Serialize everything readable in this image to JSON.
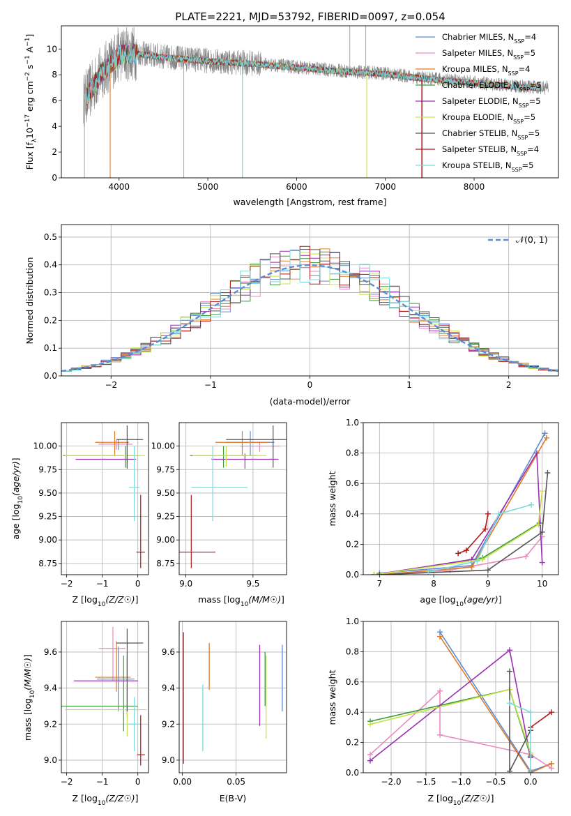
{
  "figure": {
    "title": "PLATE=2221, MJD=53792, FIBERID=0097, z=0.054"
  },
  "series_colors": {
    "Chabrier MILES": "#5b8bd6",
    "Salpeter MILES": "#e98ac0",
    "Kroupa MILES": "#e07b28",
    "Chabrier ELODIE": "#3a9a3a",
    "Salpeter ELODIE": "#9a2fb0",
    "Kroupa ELODIE": "#c8e04a",
    "Chabrier STELIB": "#555555",
    "Salpeter STELIB": "#b01818",
    "Kroupa STELIB": "#7ad9dc",
    "data": "#808080"
  },
  "chart_data": [
    {
      "id": "spectrum",
      "type": "line",
      "xlabel": "wavelength [Angstrom, rest frame]",
      "ylabel": "Flux [f_λ 10^-17 erg cm^-2 s^-1 A^-1]",
      "xlim": [
        3350,
        8950
      ],
      "ylim": [
        0,
        11.8
      ],
      "xticks": [
        4000,
        5000,
        6000,
        7000,
        8000
      ],
      "yticks": [
        0,
        2,
        4,
        6,
        8,
        10
      ],
      "legend_position": "top-right",
      "legend": [
        {
          "series": "Chabrier MILES",
          "label": "Chabrier MILES, N",
          "sub": "SSP",
          "tail": "=4"
        },
        {
          "series": "Salpeter MILES",
          "label": "Salpeter MILES, N",
          "sub": "SSP",
          "tail": "=5"
        },
        {
          "series": "Kroupa MILES",
          "label": "Kroupa MILES, N",
          "sub": "SSP",
          "tail": "=4"
        },
        {
          "series": "Chabrier ELODIE",
          "label": "Chabrier ELODIE, N",
          "sub": "SSP",
          "tail": "=5"
        },
        {
          "series": "Salpeter ELODIE",
          "label": "Salpeter ELODIE, N",
          "sub": "SSP",
          "tail": "=5"
        },
        {
          "series": "Kroupa ELODIE",
          "label": "Kroupa ELODIE, N",
          "sub": "SSP",
          "tail": "=5"
        },
        {
          "series": "Chabrier STELIB",
          "label": "Chabrier STELIB, N",
          "sub": "SSP",
          "tail": "=5"
        },
        {
          "series": "Salpeter STELIB",
          "label": "Salpeter STELIB, N",
          "sub": "SSP",
          "tail": "=4"
        },
        {
          "series": "Kroupa STELIB",
          "label": "Kroupa STELIB, N",
          "sub": "SSP",
          "tail": "=5"
        }
      ],
      "continuum": {
        "x": [
          3600,
          3700,
          3800,
          3900,
          4000,
          4200,
          4500,
          5000,
          5500,
          6000,
          6500,
          7000,
          7500,
          8000,
          8500,
          8800
        ],
        "y": [
          6.0,
          7.0,
          8.2,
          8.8,
          9.6,
          9.7,
          9.4,
          9.1,
          8.9,
          8.6,
          8.3,
          8.1,
          7.7,
          7.4,
          7.1,
          7.0
        ]
      },
      "data_x_range": [
        3600,
        8840
      ],
      "model_x_range": [
        3630,
        8760
      ]
    },
    {
      "id": "residuals",
      "type": "line",
      "xlabel": "(data-model)/error",
      "ylabel": "Normed distribution",
      "xlim": [
        -2.5,
        2.5
      ],
      "ylim": [
        0,
        0.545
      ],
      "xticks": [
        -2,
        -1,
        0,
        1,
        2
      ],
      "yticks": [
        0.0,
        0.1,
        0.2,
        0.3,
        0.4,
        0.5
      ],
      "reference": {
        "label": "𝒩(0, 1)",
        "mu": 0,
        "sigma": 1,
        "color": "#5b8bd6",
        "style": "dashed"
      },
      "legend_position": "top-right",
      "bin_width": 0.1
    },
    {
      "id": "age_vs_Z",
      "type": "scatter",
      "xlabel": "Z [log10(Z/Z☉)]",
      "ylabel": "age [log10(age/yr)]",
      "xlim": [
        -2.15,
        0.3
      ],
      "ylim": [
        8.63,
        10.25
      ],
      "xticks": [
        -2,
        -1,
        0
      ],
      "yticks": [
        8.75,
        9.0,
        9.25,
        9.5,
        9.75,
        10.0
      ],
      "points": [
        {
          "series": "Chabrier MILES",
          "x": -0.55,
          "y": 10.02,
          "xerr": [
            0.55,
            0.3
          ],
          "yerr": [
            0.06,
            0.05
          ]
        },
        {
          "series": "Salpeter MILES",
          "x": -0.6,
          "y": 10.02,
          "xerr": [
            0.5,
            0.45
          ],
          "yerr": [
            0.06,
            0.05
          ]
        },
        {
          "series": "Kroupa MILES",
          "x": -0.65,
          "y": 10.04,
          "xerr": [
            0.55,
            0.4
          ],
          "yerr": [
            0.14,
            0.12
          ]
        },
        {
          "series": "Chabrier ELODIE",
          "x": -0.35,
          "y": 9.9,
          "xerr": [
            1.75,
            0.4
          ],
          "yerr": [
            0.13,
            0.1
          ]
        },
        {
          "series": "Salpeter ELODIE",
          "x": -0.3,
          "y": 9.86,
          "xerr": [
            1.45,
            0.25
          ],
          "yerr": [
            0.1,
            0.06
          ]
        },
        {
          "series": "Kroupa ELODIE",
          "x": -0.3,
          "y": 9.9,
          "xerr": [
            1.75,
            0.5
          ],
          "yerr": [
            0.12,
            0.1
          ]
        },
        {
          "series": "Chabrier STELIB",
          "x": -0.3,
          "y": 10.07,
          "xerr": [
            0.3,
            0.45
          ],
          "yerr": [
            0.3,
            0.15
          ]
        },
        {
          "series": "Salpeter STELIB",
          "x": 0.08,
          "y": 8.87,
          "xerr": [
            0.12,
            0.12
          ],
          "yerr": [
            0.17,
            0.61
          ]
        },
        {
          "series": "Kroupa STELIB",
          "x": -0.1,
          "y": 9.56,
          "xerr": [
            0.15,
            0.15
          ],
          "yerr": [
            0.36,
            0.44
          ]
        }
      ]
    },
    {
      "id": "age_vs_mass",
      "type": "scatter",
      "xlabel": "mass [log10(M/M☉)]",
      "ylabel": "",
      "xlim": [
        8.95,
        9.75
      ],
      "ylim": [
        8.63,
        10.25
      ],
      "xticks": [
        9.0,
        9.5
      ],
      "yticks": [
        8.75,
        9.0,
        9.25,
        9.5,
        9.75,
        10.0
      ],
      "points": [
        {
          "series": "Chabrier MILES",
          "x": 9.48,
          "y": 10.04,
          "xerr": [
            0.18,
            0.18
          ],
          "yerr": [
            0.14,
            0.12
          ]
        },
        {
          "series": "Salpeter MILES",
          "x": 9.55,
          "y": 10.0,
          "xerr": [
            0.15,
            0.15
          ],
          "yerr": [
            0.06,
            0.05
          ]
        },
        {
          "series": "Kroupa MILES",
          "x": 9.42,
          "y": 10.04,
          "xerr": [
            0.2,
            0.2
          ],
          "yerr": [
            0.14,
            0.12
          ]
        },
        {
          "series": "Chabrier ELODIE",
          "x": 9.28,
          "y": 9.9,
          "xerr": [
            0.25,
            0.25
          ],
          "yerr": [
            0.13,
            0.1
          ]
        },
        {
          "series": "Salpeter ELODIE",
          "x": 9.44,
          "y": 9.86,
          "xerr": [
            0.25,
            0.25
          ],
          "yerr": [
            0.1,
            0.06
          ]
        },
        {
          "series": "Kroupa ELODIE",
          "x": 9.3,
          "y": 9.9,
          "xerr": [
            0.25,
            0.3
          ],
          "yerr": [
            0.12,
            0.1
          ]
        },
        {
          "series": "Chabrier STELIB",
          "x": 9.65,
          "y": 10.07,
          "xerr": [
            0.35,
            0.1
          ],
          "yerr": [
            0.3,
            0.15
          ]
        },
        {
          "series": "Salpeter STELIB",
          "x": 9.04,
          "y": 8.87,
          "xerr": [
            0.1,
            0.18
          ],
          "yerr": [
            0.17,
            0.61
          ]
        },
        {
          "series": "Kroupa STELIB",
          "x": 9.2,
          "y": 9.56,
          "xerr": [
            0.16,
            0.26
          ],
          "yerr": [
            0.36,
            0.44
          ]
        }
      ]
    },
    {
      "id": "mass_weight_vs_age",
      "type": "line",
      "xlabel": "age [log10(age/yr)]",
      "ylabel": "mass weight",
      "xlim": [
        6.7,
        10.3
      ],
      "ylim": [
        0,
        1.0
      ],
      "xticks": [
        7,
        8,
        9,
        10
      ],
      "yticks": [
        0.0,
        0.2,
        0.4,
        0.6,
        0.8,
        1.0
      ],
      "series": [
        {
          "name": "Chabrier MILES",
          "x": [
            7.0,
            8.7,
            10.05
          ],
          "y": [
            0.01,
            0.06,
            0.93
          ]
        },
        {
          "name": "Salpeter MILES",
          "x": [
            7.0,
            8.3,
            9.7,
            10.0
          ],
          "y": [
            0.0,
            0.03,
            0.12,
            0.25
          ]
        },
        {
          "name": "Kroupa MILES",
          "x": [
            7.0,
            8.7,
            10.08
          ],
          "y": [
            0.0,
            0.05,
            0.9
          ]
        },
        {
          "name": "Chabrier ELODIE",
          "x": [
            6.9,
            8.9,
            9.95
          ],
          "y": [
            0.0,
            0.11,
            0.34
          ]
        },
        {
          "name": "Salpeter ELODIE",
          "x": [
            6.9,
            8.7,
            9.9,
            10.0
          ],
          "y": [
            0.0,
            0.1,
            0.8,
            0.08
          ]
        },
        {
          "name": "Kroupa ELODIE",
          "x": [
            6.9,
            8.9,
            9.93,
            10.0
          ],
          "y": [
            0.0,
            0.1,
            0.33,
            0.55
          ]
        },
        {
          "name": "Chabrier STELIB",
          "x": [
            7.0,
            9.0,
            10.0,
            10.1
          ],
          "y": [
            0.0,
            0.03,
            0.28,
            0.67
          ]
        },
        {
          "name": "Salpeter STELIB",
          "x": [
            8.45,
            8.6,
            8.95,
            9.0
          ],
          "y": [
            0.14,
            0.16,
            0.3,
            0.4
          ]
        },
        {
          "name": "Kroupa STELIB",
          "x": [
            7.9,
            8.8,
            9.2,
            9.8
          ],
          "y": [
            0.02,
            0.09,
            0.4,
            0.46
          ]
        }
      ]
    },
    {
      "id": "mass_vs_Z",
      "type": "scatter",
      "xlabel": "Z [log10(Z/Z☉)]",
      "ylabel": "mass [log10(M/M☉)]",
      "xlim": [
        -2.15,
        0.3
      ],
      "ylim": [
        8.93,
        9.77
      ],
      "xticks": [
        -2,
        -1,
        0
      ],
      "yticks": [
        9.0,
        9.2,
        9.4,
        9.6
      ],
      "points": [
        {
          "series": "Chabrier MILES",
          "x": -0.55,
          "y": 9.45,
          "xerr": [
            0.6,
            0.45
          ],
          "yerr": [
            0.18,
            0.18
          ]
        },
        {
          "series": "Salpeter MILES",
          "x": -0.7,
          "y": 9.62,
          "xerr": [
            0.4,
            0.35
          ],
          "yerr": [
            0.18,
            0.12
          ]
        },
        {
          "series": "Kroupa MILES",
          "x": -0.6,
          "y": 9.46,
          "xerr": [
            0.6,
            0.4
          ],
          "yerr": [
            0.08,
            0.2
          ]
        },
        {
          "series": "Chabrier ELODIE",
          "x": -0.4,
          "y": 9.3,
          "xerr": [
            1.75,
            0.4
          ],
          "yerr": [
            0.14,
            0.28
          ]
        },
        {
          "series": "Salpeter ELODIE",
          "x": -0.3,
          "y": 9.44,
          "xerr": [
            1.5,
            0.3
          ],
          "yerr": [
            0.2,
            0.14
          ]
        },
        {
          "series": "Kroupa ELODIE",
          "x": -0.3,
          "y": 9.28,
          "xerr": [
            1.75,
            0.55
          ],
          "yerr": [
            0.15,
            0.26
          ]
        },
        {
          "series": "Chabrier STELIB",
          "x": -0.3,
          "y": 9.65,
          "xerr": [
            0.3,
            0.45
          ],
          "yerr": [
            0.38,
            0.08
          ]
        },
        {
          "series": "Salpeter STELIB",
          "x": 0.08,
          "y": 9.03,
          "xerr": [
            0.1,
            0.12
          ],
          "yerr": [
            0.06,
            0.22
          ]
        },
        {
          "series": "Kroupa STELIB",
          "x": -0.1,
          "y": 9.2,
          "xerr": [
            0.15,
            0.15
          ],
          "yerr": [
            0.15,
            0.15
          ]
        }
      ]
    },
    {
      "id": "mass_vs_EBV",
      "type": "scatter",
      "xlabel": "E(B-V)",
      "ylabel": "",
      "xlim": [
        -0.003,
        0.097
      ],
      "ylim": [
        8.93,
        9.77
      ],
      "xticks": [
        0.0,
        0.05
      ],
      "yticks": [
        9.0,
        9.2,
        9.4,
        9.6
      ],
      "vlines": [
        {
          "series": "Salpeter STELIB",
          "x": 0.001,
          "y0": 8.98,
          "y1": 9.71
        },
        {
          "series": "Kroupa MILES",
          "x": 0.025,
          "y0": 9.39,
          "y1": 9.65
        },
        {
          "series": "Kroupa STELIB",
          "x": 0.019,
          "y0": 9.05,
          "y1": 9.42
        },
        {
          "series": "Salpeter ELODIE",
          "x": 0.072,
          "y0": 9.19,
          "y1": 9.64
        },
        {
          "series": "Chabrier ELODIE",
          "x": 0.077,
          "y0": 9.3,
          "y1": 9.6
        },
        {
          "series": "Kroupa ELODIE",
          "x": 0.078,
          "y0": 9.12,
          "y1": 9.58
        },
        {
          "series": "Chabrier MILES",
          "x": 0.093,
          "y0": 9.27,
          "y1": 9.64
        }
      ]
    },
    {
      "id": "mass_weight_vs_Z",
      "type": "line",
      "xlabel": "Z [log10(Z/Z☉)]",
      "ylabel": "mass weight",
      "xlim": [
        -2.4,
        0.4
      ],
      "ylim": [
        0,
        1.0
      ],
      "xticks": [
        -2.0,
        -1.5,
        -1.0,
        -0.5,
        0.0
      ],
      "yticks": [
        0.0,
        0.2,
        0.4,
        0.6,
        0.8,
        1.0
      ],
      "series": [
        {
          "name": "Chabrier MILES",
          "x": [
            -1.3,
            0.0,
            0.3
          ],
          "y": [
            0.93,
            0.01,
            0.06
          ]
        },
        {
          "name": "Salpeter MILES",
          "x": [
            -2.3,
            -1.3,
            -1.3,
            0.0,
            0.3
          ],
          "y": [
            0.12,
            0.54,
            0.25,
            0.12,
            0.03
          ]
        },
        {
          "name": "Kroupa MILES",
          "x": [
            -1.3,
            0.0,
            0.3
          ],
          "y": [
            0.9,
            0.0,
            0.06
          ]
        },
        {
          "name": "Chabrier ELODIE",
          "x": [
            -2.3,
            -0.3,
            0.0
          ],
          "y": [
            0.34,
            0.55,
            0.11
          ]
        },
        {
          "name": "Salpeter ELODIE",
          "x": [
            -2.3,
            -0.3,
            0.0
          ],
          "y": [
            0.08,
            0.81,
            0.1
          ]
        },
        {
          "name": "Kroupa ELODIE",
          "x": [
            -2.3,
            -0.3,
            0.0
          ],
          "y": [
            0.32,
            0.55,
            0.13
          ]
        },
        {
          "name": "Chabrier STELIB",
          "x": [
            -0.3,
            -0.3,
            0.0
          ],
          "y": [
            0.67,
            0.01,
            0.28
          ]
        },
        {
          "name": "Salpeter STELIB",
          "x": [
            0.0,
            0.3
          ],
          "y": [
            0.3,
            0.4
          ]
        },
        {
          "name": "Kroupa STELIB",
          "x": [
            -0.3,
            0.0,
            0.0
          ],
          "y": [
            0.46,
            0.4,
            0.02
          ]
        }
      ]
    }
  ]
}
